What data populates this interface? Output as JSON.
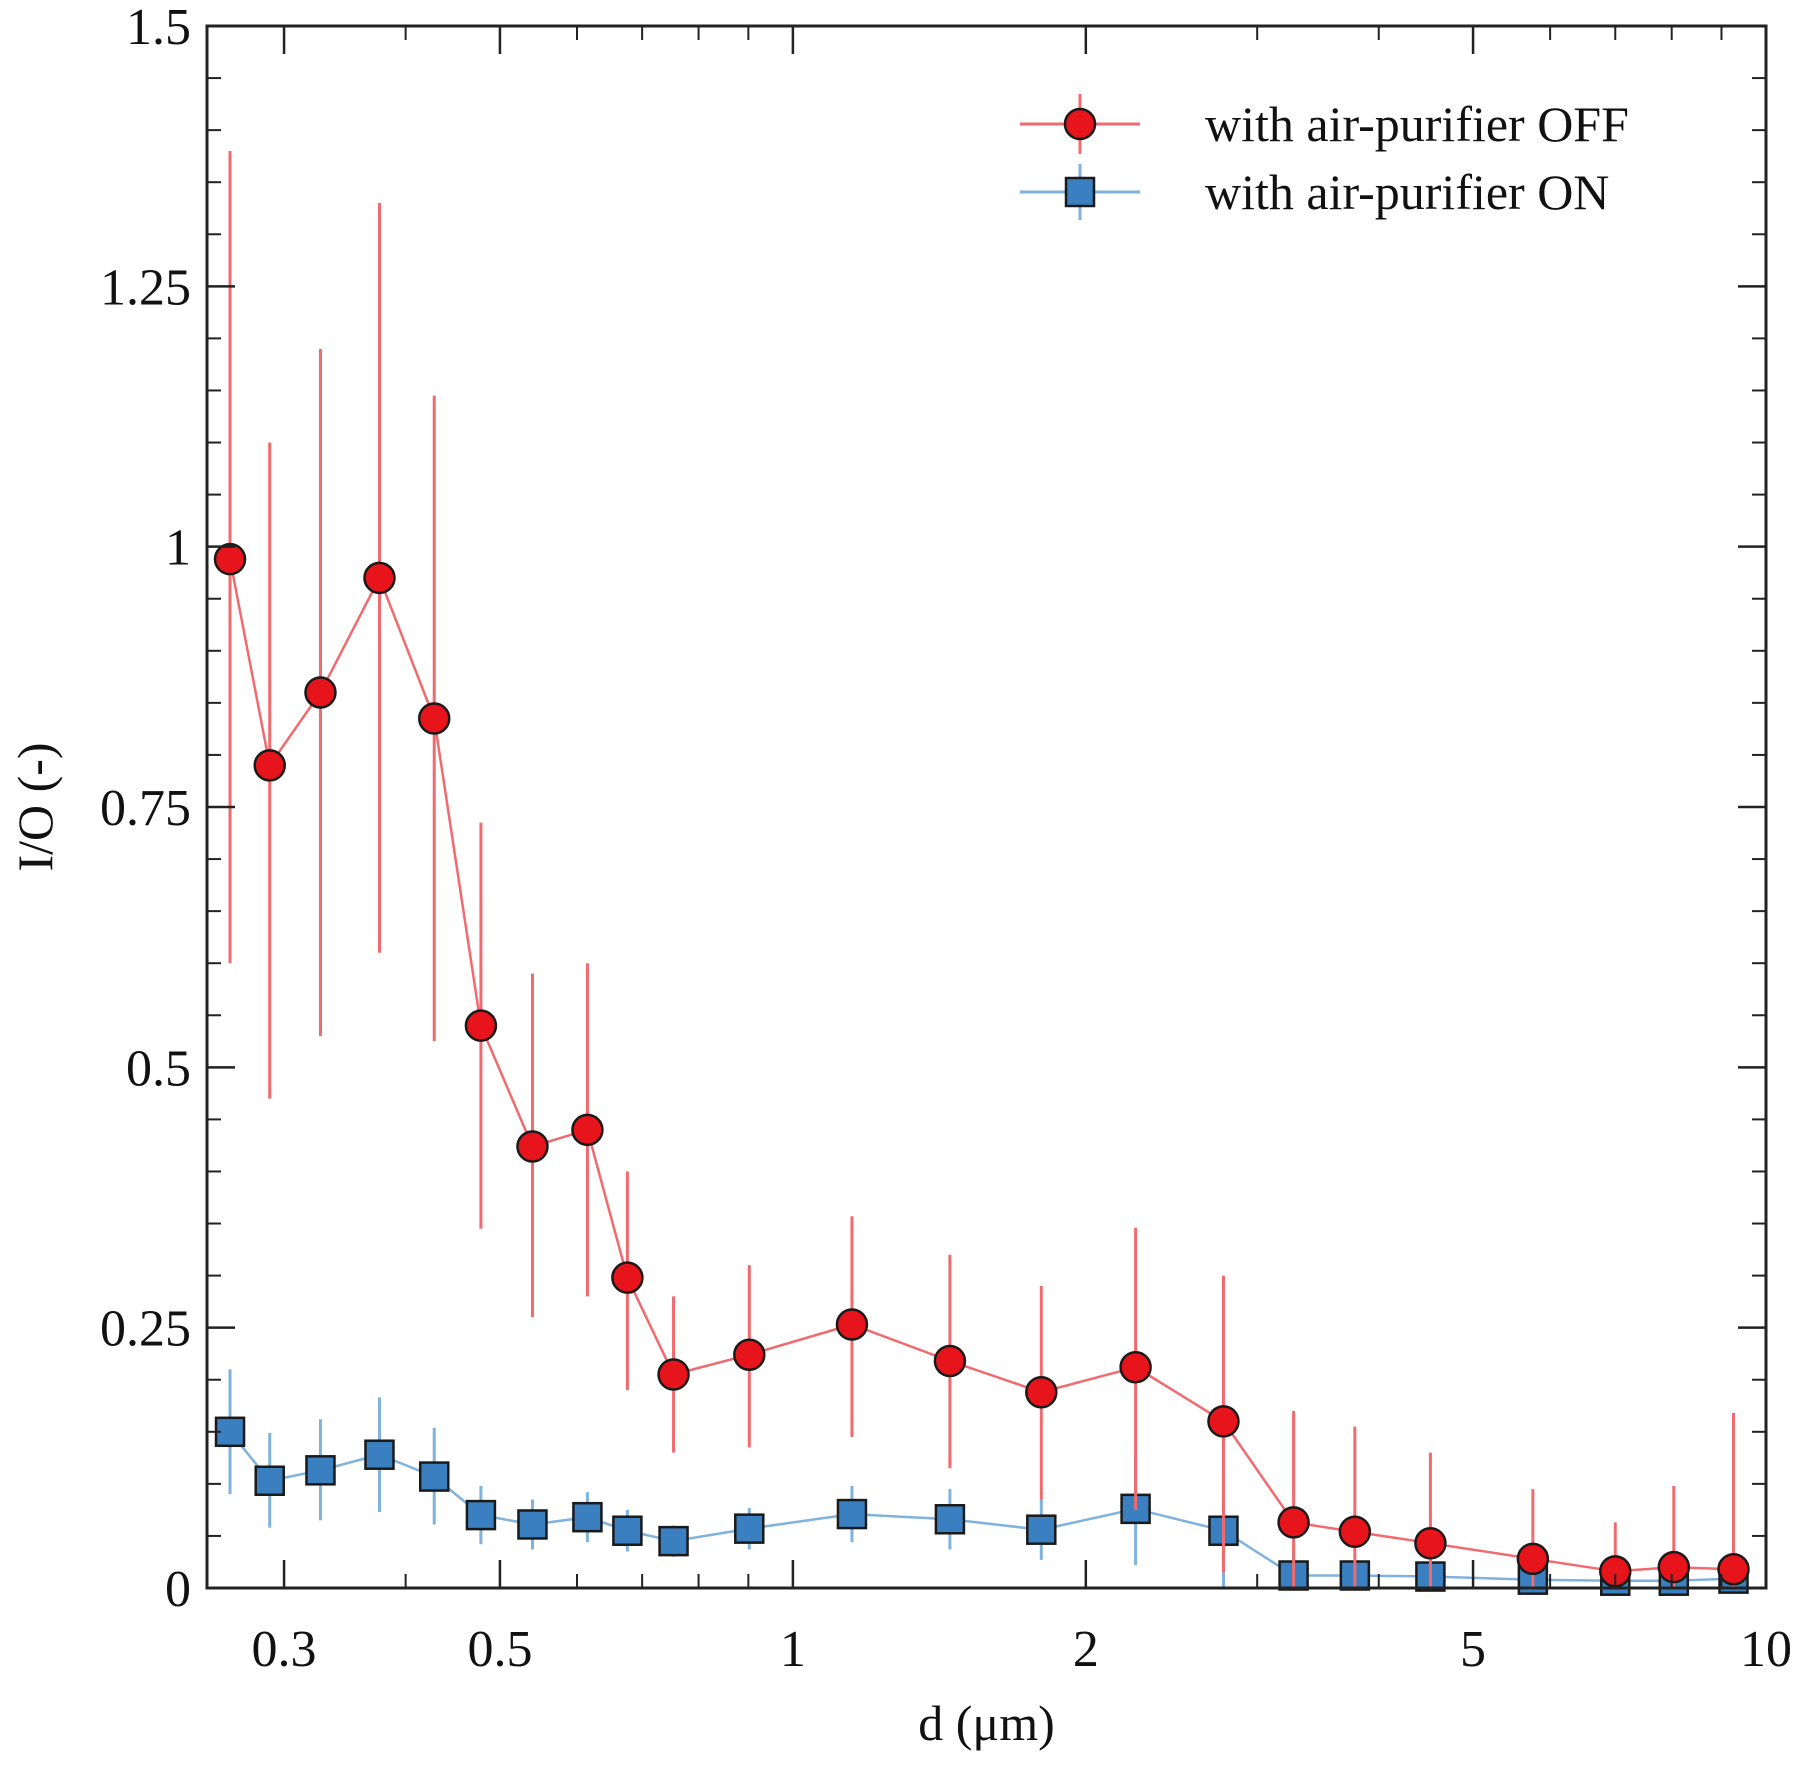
{
  "chart_data": {
    "type": "line",
    "title": "",
    "xlabel": "d (μm)",
    "ylabel": "I/O (-)",
    "xscale": "log",
    "xlim": [
      0.25,
      10
    ],
    "ylim": [
      0,
      1.5
    ],
    "grid": false,
    "legend_position": "top-right",
    "x_ticks": [
      {
        "value": 0.3,
        "label": "0.3"
      },
      {
        "value": 0.5,
        "label": "0.5"
      },
      {
        "value": 1,
        "label": "1"
      },
      {
        "value": 2,
        "label": "2"
      },
      {
        "value": 5,
        "label": "5"
      },
      {
        "value": 10,
        "label": "10"
      }
    ],
    "y_ticks": [
      {
        "value": 0,
        "label": "0"
      },
      {
        "value": 0.25,
        "label": "0.25"
      },
      {
        "value": 0.5,
        "label": "0.5"
      },
      {
        "value": 0.75,
        "label": "0.75"
      },
      {
        "value": 1,
        "label": "1"
      },
      {
        "value": 1.25,
        "label": "1.25"
      },
      {
        "value": 1.5,
        "label": "1.5"
      }
    ],
    "x": [
      0.264,
      0.29,
      0.327,
      0.376,
      0.428,
      0.478,
      0.54,
      0.615,
      0.676,
      0.754,
      0.902,
      1.15,
      1.45,
      1.8,
      2.25,
      2.77,
      3.27,
      3.78,
      4.52,
      5.76,
      7.0,
      8.04,
      9.26
    ],
    "series": [
      {
        "name": "with air-purifier OFF",
        "marker": "circle",
        "color": "#e8141c",
        "line_color": "#f06a6e",
        "values": [
          0.988,
          0.79,
          0.86,
          0.97,
          0.835,
          0.54,
          0.424,
          0.44,
          0.298,
          0.205,
          0.224,
          0.253,
          0.218,
          0.188,
          0.212,
          0.16,
          0.063,
          0.054,
          0.043,
          0.028,
          0.016,
          0.02,
          0.018
        ],
        "err_upper": [
          1.38,
          1.1,
          1.19,
          1.33,
          1.145,
          0.735,
          0.59,
          0.6,
          0.4,
          0.28,
          0.31,
          0.357,
          0.32,
          0.29,
          0.346,
          0.3,
          0.17,
          0.155,
          0.13,
          0.095,
          0.063,
          0.098,
          0.168
        ],
        "err_lower": [
          0.6,
          0.47,
          0.53,
          0.61,
          0.525,
          0.345,
          0.26,
          0.28,
          0.19,
          0.13,
          0.135,
          0.145,
          0.115,
          0.085,
          0.075,
          0.015,
          0.0,
          0.0,
          0.0,
          0.0,
          0.0,
          0.0,
          0.0
        ]
      },
      {
        "name": "with air-purifier ON",
        "marker": "square",
        "color": "#3a80c0",
        "line_color": "#7fb2dc",
        "values": [
          0.15,
          0.103,
          0.113,
          0.128,
          0.107,
          0.07,
          0.061,
          0.068,
          0.055,
          0.045,
          0.057,
          0.071,
          0.066,
          0.056,
          0.076,
          0.055,
          0.012,
          0.012,
          0.011,
          0.008,
          0.007,
          0.007,
          0.009
        ],
        "err_upper": [
          0.21,
          0.149,
          0.162,
          0.183,
          0.154,
          0.098,
          0.085,
          0.092,
          0.075,
          0.06,
          0.077,
          0.098,
          0.095,
          0.085,
          0.13,
          0.11,
          0.02,
          0.02,
          0.018,
          0.014,
          0.012,
          0.012,
          0.015
        ],
        "err_lower": [
          0.09,
          0.058,
          0.065,
          0.073,
          0.061,
          0.042,
          0.037,
          0.044,
          0.035,
          0.03,
          0.037,
          0.044,
          0.037,
          0.027,
          0.022,
          0.0,
          0.004,
          0.004,
          0.004,
          0.002,
          0.002,
          0.002,
          0.003
        ]
      }
    ]
  }
}
